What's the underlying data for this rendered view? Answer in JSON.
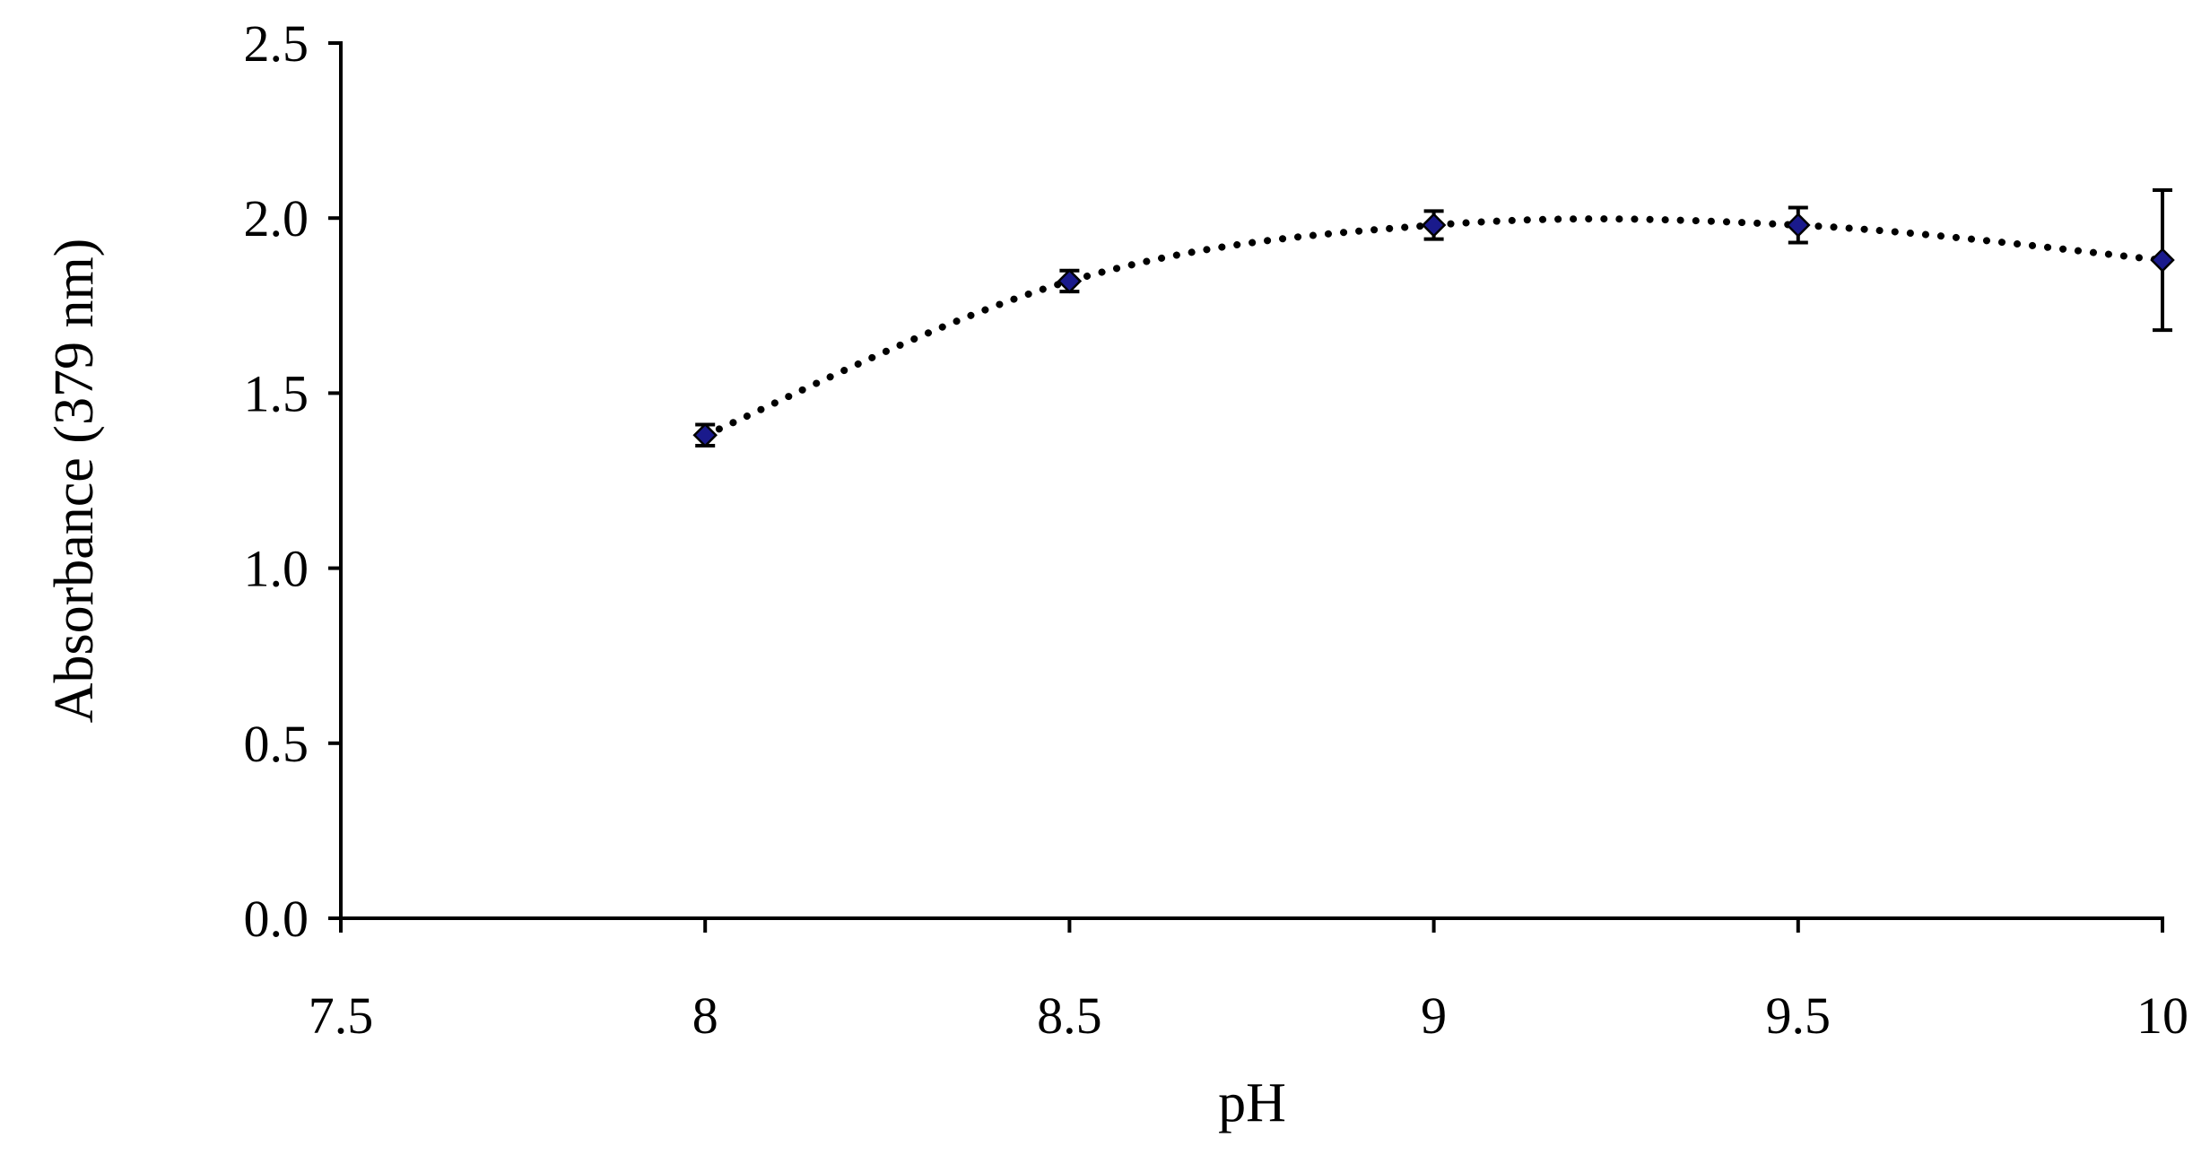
{
  "chart_data": {
    "type": "line",
    "title": "",
    "xlabel": "pH",
    "ylabel": "Absorbance (379 nm)",
    "xlim": [
      7.5,
      10
    ],
    "ylim": [
      0,
      2.5
    ],
    "x_ticks": [
      "7.5",
      "8",
      "8.5",
      "9",
      "9.5",
      "10"
    ],
    "y_ticks": [
      "0.0",
      "0.5",
      "1.0",
      "1.5",
      "2.0",
      "2.5"
    ],
    "grid": false,
    "legend": "none",
    "series": [
      {
        "color": "#1a1a8c",
        "line_style": "dotted",
        "marker": "diamond",
        "points": [
          {
            "x": 8.0,
            "y": 1.38,
            "err": 0.03
          },
          {
            "x": 8.5,
            "y": 1.82,
            "err": 0.03
          },
          {
            "x": 9.0,
            "y": 1.98,
            "err": 0.04
          },
          {
            "x": 9.5,
            "y": 1.98,
            "err": 0.05
          },
          {
            "x": 10.0,
            "y": 1.88,
            "err": 0.2
          }
        ]
      }
    ]
  }
}
